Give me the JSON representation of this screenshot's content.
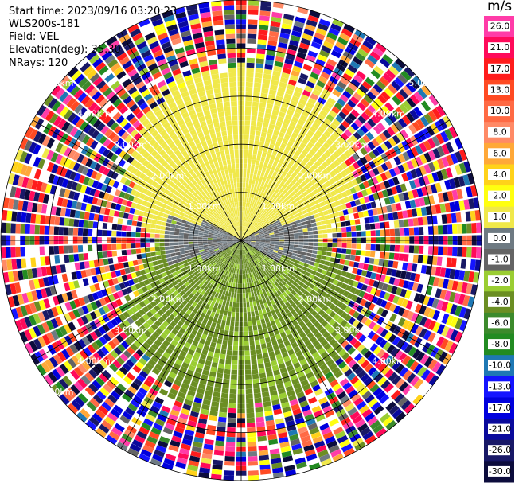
{
  "header": {
    "start_time": "Start time: 2023/09/16 03:20:23",
    "instrument": "WLS200s-181",
    "field": "Field: VEL",
    "elevation": "Elevation(deg): 35.30",
    "nrays": "NRays: 120"
  },
  "colorbar": {
    "unit": "m/s",
    "ticks": [
      "26.0",
      "21.0",
      "17.0",
      "13.0",
      "10.0",
      "8.0",
      "6.0",
      "4.0",
      "2.0",
      "1.0",
      "0.0",
      "-1.0",
      "-2.0",
      "-4.0",
      "-6.0",
      "-8.0",
      "-10.0",
      "-13.0",
      "-17.0",
      "-21.0",
      "-26.0",
      "-30.0"
    ],
    "colors": [
      "#ff3ca8",
      "#ff0a5a",
      "#ff1c1c",
      "#ff4a22",
      "#ff6a44",
      "#ff8a66",
      "#ffa838",
      "#ffd21a",
      "#ffff10",
      "#f0e84a",
      "#6e7a82",
      "#646464",
      "#9acd32",
      "#6b8e23",
      "#3c8a2c",
      "#228b22",
      "#1e78b4",
      "#1414ff",
      "#0000dd",
      "#0a0a9c",
      "#181866",
      "#0c0c3c"
    ]
  },
  "chart_data": {
    "type": "heatmap",
    "title": "",
    "projection": "polar-ppi",
    "field": "VEL",
    "units": "m/s",
    "nrays": 120,
    "range_rings_km": [
      1.0,
      2.0,
      3.0,
      4.0,
      5.0
    ],
    "range_labels": [
      "1.00km",
      "2.00km",
      "3.00km",
      "4.00km",
      "5.00km"
    ],
    "max_range_km": 5.0,
    "spokes_deg": [
      0,
      30,
      60,
      90,
      120,
      150,
      180,
      210,
      240,
      270,
      300,
      330
    ],
    "color_range": [
      -30,
      30
    ],
    "pattern_description_regions": [
      {
        "range_km": [
          0,
          3.3
        ],
        "azimuth": "north sector (approx 300-60 deg)",
        "value_m_s": 2.0
      },
      {
        "range_km": [
          0,
          1.8
        ],
        "azimuth": "west-east band near center",
        "value_m_s": 0.0
      },
      {
        "range_km": [
          0,
          3.3
        ],
        "azimuth": "south sector (approx 120-240 deg)",
        "value_m_s": -2.0
      },
      {
        "range_km": [
          3.3,
          5.0
        ],
        "azimuth": "all",
        "value_m_s": "noise"
      }
    ],
    "grid": true
  }
}
